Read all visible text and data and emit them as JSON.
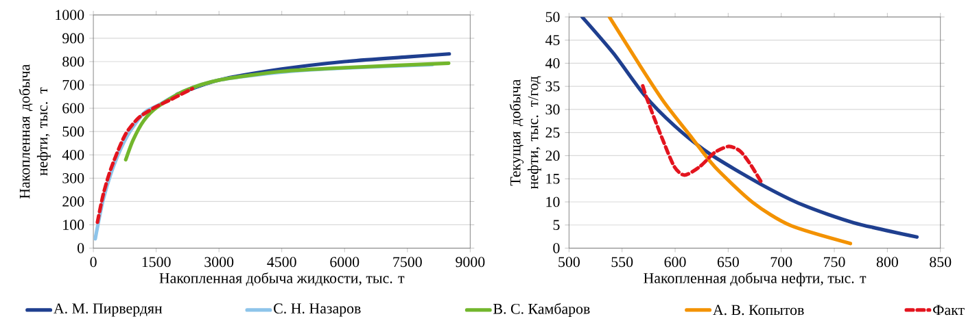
{
  "chart_data": [
    {
      "type": "line",
      "xlabel": "Накопленная добыча жидкости, тыс. т",
      "ylabel": "Накопленная  добыча нефти, тыс. т",
      "xlim": [
        0,
        9000
      ],
      "xticks": [
        0,
        1500,
        3000,
        4500,
        6000,
        7500,
        9000
      ],
      "ylim": [
        0,
        1000
      ],
      "yticks": [
        0,
        100,
        200,
        300,
        400,
        500,
        600,
        700,
        800,
        900,
        1000
      ],
      "grid": "y",
      "legend": "bottom",
      "marker": "none",
      "series": [
        {
          "name": "А. М. Пирвердян",
          "color": "#1f3f8f",
          "x": [
            2000,
            3000,
            4500,
            6000,
            7500,
            8500
          ],
          "values": [
            660,
            721,
            768,
            800,
            820,
            833
          ]
        },
        {
          "name": "С. Н. Назаров",
          "color": "#8dc4ea",
          "x": [
            45,
            238,
            496,
            818,
            1205,
            1527,
            2171,
            3009,
            4500,
            6000,
            8100
          ],
          "values": [
            40,
            210,
            358,
            484,
            579,
            611,
            674,
            721,
            755,
            772,
            787
          ]
        },
        {
          "name": "В. С. Камбаров",
          "color": "#72b62c",
          "x": [
            773,
            947,
            1205,
            1527,
            2171,
            3009,
            4504,
            6005,
            8486
          ],
          "values": [
            379,
            463,
            547,
            605,
            674,
            721,
            758,
            774,
            793
          ]
        },
        {
          "color": "#e3141e",
          "line_style": "dashed",
          "x": [
            97,
            238,
            432,
            754,
            1076,
            1463,
            1849,
            2365
          ],
          "values": [
            111,
            232,
            347,
            484,
            558,
            603,
            637,
            684
          ]
        }
      ]
    },
    {
      "type": "line",
      "xlabel": "Накопленная  добыча нефти, тыс. т",
      "ylabel": "Текущая  добыча нефти, тыс. т/год",
      "xlim": [
        500,
        850
      ],
      "xticks": [
        500,
        550,
        600,
        650,
        700,
        750,
        800,
        850
      ],
      "ylim": [
        0,
        50
      ],
      "yticks": [
        0,
        5,
        10,
        15,
        20,
        25,
        30,
        35,
        40,
        45,
        50
      ],
      "grid": "y",
      "legend": "bottom",
      "marker": "none",
      "series": [
        {
          "color": "#1f3f8f",
          "x": [
            512.4,
            542,
            570.7,
            599.3,
            632.6,
            680.2,
            720.7,
            768.3,
            827.9
          ],
          "values": [
            50,
            42.1,
            33.2,
            26.5,
            20.4,
            13.9,
            9.3,
            5.5,
            2.4
          ]
        },
        {
          "name": "А. В. Копытов",
          "color": "#f39200",
          "x": [
            538.1,
            566,
            589.8,
            616,
            637.4,
            673.1,
            708.8,
            765.2
          ],
          "values": [
            50,
            39.8,
            31.5,
            23.8,
            17.6,
            9.9,
            4.9,
            1.0
          ]
        },
        {
          "name": "Факт",
          "color": "#e3141e",
          "line_style": "dashed",
          "x": [
            569.5,
            573,
            580.2,
            589.8,
            599.3,
            608.8,
            623.1,
            637.4,
            650.5,
            661.2,
            670.7,
            681.4
          ],
          "values": [
            35.1,
            32.6,
            28.2,
            22.6,
            17.6,
            15.8,
            17.6,
            20.7,
            22.0,
            21.0,
            18.2,
            14.2
          ]
        }
      ]
    }
  ]
}
